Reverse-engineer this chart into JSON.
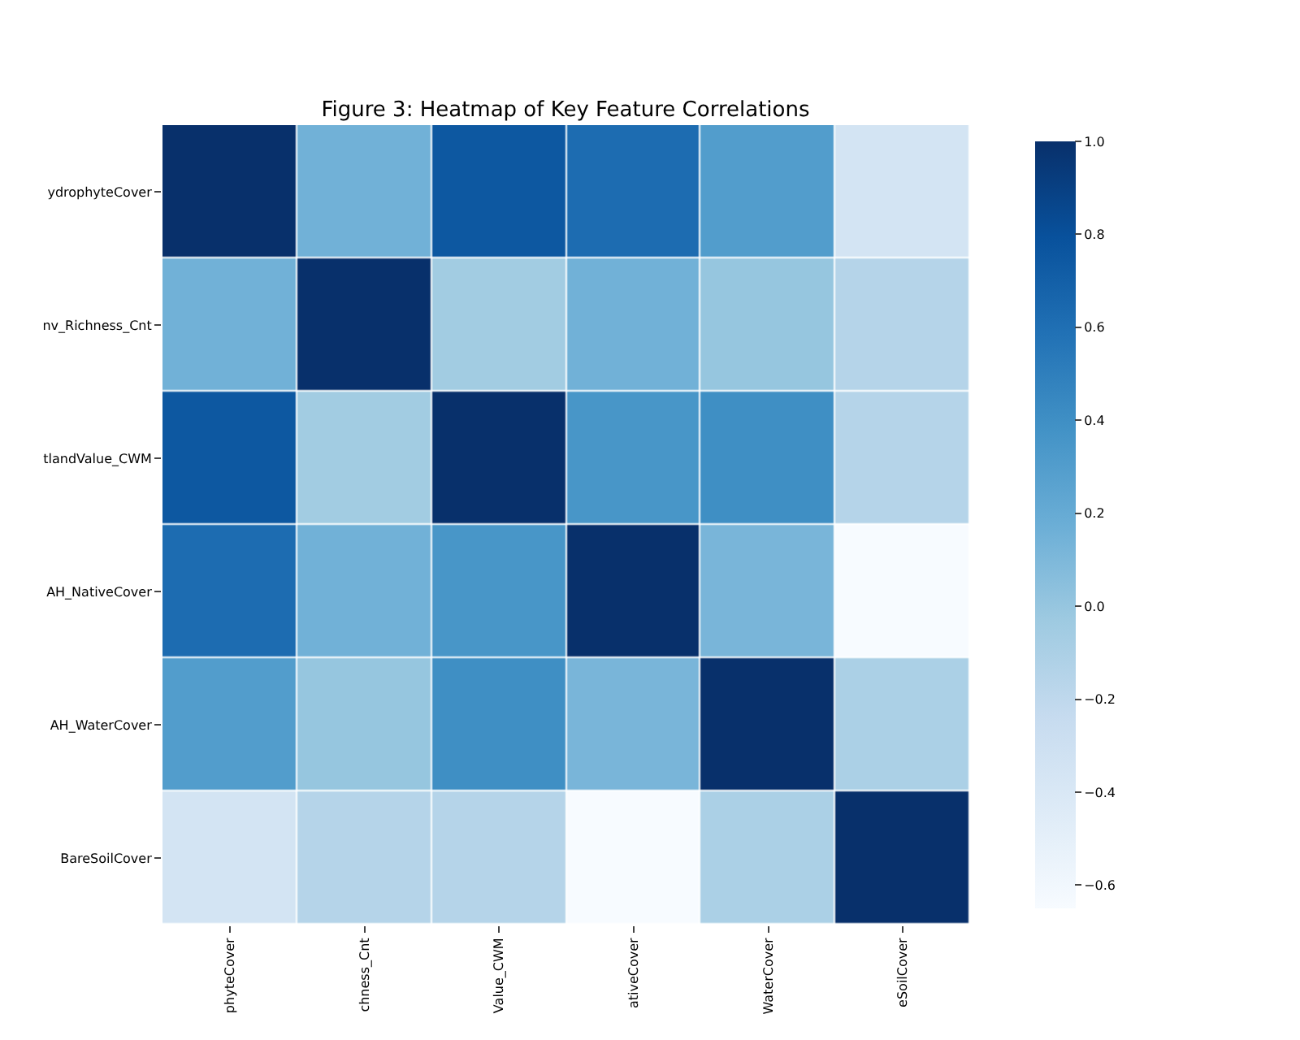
{
  "chart_data": {
    "type": "heatmap",
    "title": "Figure 3: Heatmap of Key Feature Correlations",
    "categories": [
      "phyteCover",
      "chness_Cnt",
      "Value_CWM",
      "ativeCover",
      "WaterCover",
      "eSoilCover"
    ],
    "y_categories": [
      "ydrophyteCover",
      "nv_Richness_Cnt",
      "tlandValue_CWM",
      "AH_NativeCover",
      "AH_WaterCover",
      "BareSoilCover"
    ],
    "cells": [
      [
        1.0,
        0.15,
        0.75,
        0.62,
        0.3,
        -0.35
      ],
      [
        0.15,
        1.0,
        -0.05,
        0.15,
        0.0,
        -0.15
      ],
      [
        0.75,
        -0.05,
        1.0,
        0.35,
        0.4,
        -0.15
      ],
      [
        0.62,
        0.15,
        0.35,
        1.0,
        0.12,
        -0.65
      ],
      [
        0.3,
        0.0,
        0.4,
        0.12,
        1.0,
        -0.1
      ],
      [
        -0.35,
        -0.15,
        -0.15,
        -0.65,
        -0.1,
        1.0
      ]
    ],
    "clim": [
      -0.65,
      1.0
    ],
    "cticks": [
      {
        "value": -0.6,
        "label": "−0.6"
      },
      {
        "value": -0.4,
        "label": "−0.4"
      },
      {
        "value": -0.2,
        "label": "−0.2"
      },
      {
        "value": 0,
        "label": "0.0"
      },
      {
        "value": 0.2,
        "label": "0.2"
      },
      {
        "value": 0.4,
        "label": "0.4"
      },
      {
        "value": 0.6,
        "label": "0.6"
      },
      {
        "value": 0.8,
        "label": "0.8"
      },
      {
        "value": 1,
        "label": "1.0"
      }
    ]
  }
}
